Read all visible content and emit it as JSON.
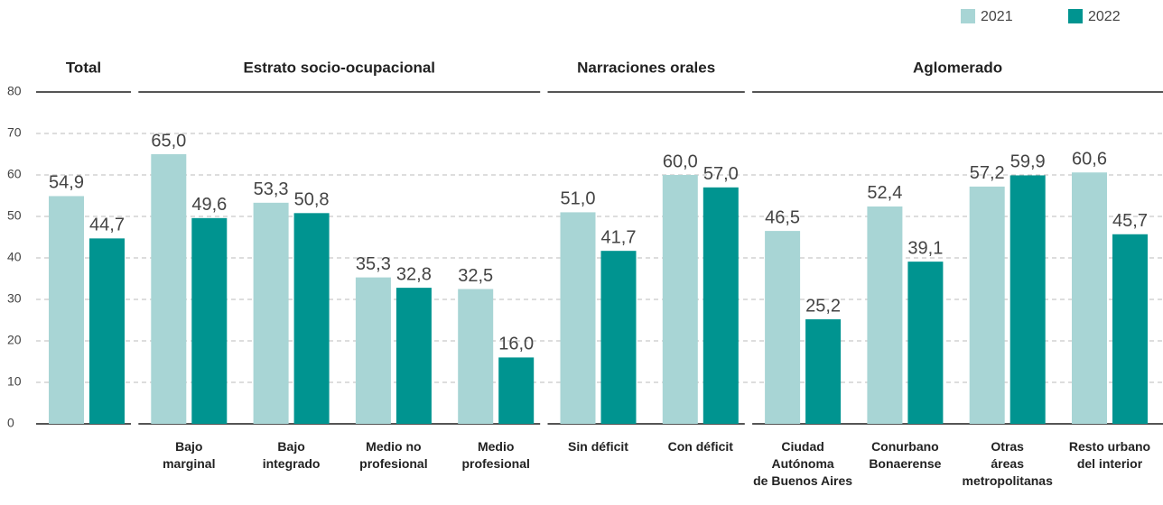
{
  "chart_data": {
    "type": "bar",
    "groups": [
      {
        "title": "Total",
        "categories": [
          null
        ]
      },
      {
        "title": "Estrato socio-ocupacional",
        "categories": [
          "Bajo\nmarginal",
          "Bajo\nintegrado",
          "Medio no\nprofesional",
          "Medio\nprofesional"
        ]
      },
      {
        "title": "Narraciones orales",
        "categories": [
          "Sin déficit",
          "Con déficit"
        ]
      },
      {
        "title": "Aglomerado",
        "categories": [
          "Ciudad\nAutónoma\nde Buenos Aires",
          "Conurbano\nBonaerense",
          "Otras\náreas\nmetropolitanas",
          "Resto urbano\ndel interior"
        ]
      }
    ],
    "series": [
      {
        "name": "2021",
        "color": "#a8d5d5",
        "values": [
          54.9,
          65.0,
          53.3,
          35.3,
          32.5,
          51.0,
          60.0,
          46.5,
          52.4,
          57.2,
          60.6
        ],
        "value_labels": [
          "54,9",
          "65,0",
          "53,3",
          "35,3",
          "32,5",
          "51,0",
          "60,0",
          "46,5",
          "52,4",
          "57,2",
          "60,6"
        ]
      },
      {
        "name": "2022",
        "color": "#009490",
        "values": [
          44.7,
          49.6,
          50.8,
          32.8,
          16.0,
          41.7,
          57.0,
          25.2,
          39.1,
          59.9,
          45.7
        ],
        "value_labels": [
          "44,7",
          "49,6",
          "50,8",
          "32,8",
          "16,0",
          "41,7",
          "57,0",
          "25,2",
          "39,1",
          "59,9",
          "45,7"
        ]
      }
    ],
    "ylim": [
      0,
      80
    ],
    "yticks": [
      0,
      10,
      20,
      30,
      40,
      50,
      60,
      70,
      80
    ],
    "grid": true,
    "legend": "top-right"
  }
}
